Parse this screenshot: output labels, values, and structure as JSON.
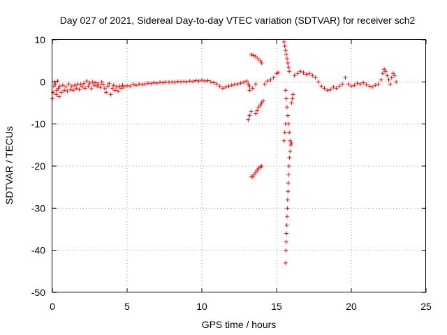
{
  "chart_data": {
    "type": "scatter",
    "title": "Day 027 of 2021, Sidereal Day-to-day VTEC variation (SDTVAR) for receiver sch2",
    "xlabel": "GPS time / hours",
    "ylabel": "SDTVAR / TECUs",
    "xlim": [
      0,
      25
    ],
    "ylim": [
      -50,
      10
    ],
    "xticks": [
      0,
      5,
      10,
      15,
      20,
      25
    ],
    "yticks": [
      -50,
      -40,
      -30,
      -20,
      -10,
      0,
      10
    ],
    "grid": true,
    "marker": "+",
    "series_color": "#ff0000",
    "series": [
      {
        "name": "SDTVAR",
        "points": [
          [
            0.0,
            -4.0
          ],
          [
            0.05,
            -2.5
          ],
          [
            0.1,
            -1.0
          ],
          [
            0.15,
            0.0
          ],
          [
            0.2,
            -0.5
          ],
          [
            0.25,
            -3.0
          ],
          [
            0.3,
            -2.0
          ],
          [
            0.35,
            0.2
          ],
          [
            0.4,
            -1.5
          ],
          [
            0.45,
            -3.5
          ],
          [
            0.5,
            -1.0
          ],
          [
            0.6,
            -2.5
          ],
          [
            0.7,
            -0.8
          ],
          [
            0.8,
            -2.0
          ],
          [
            0.9,
            -1.2
          ],
          [
            1.0,
            -2.2
          ],
          [
            1.1,
            -0.5
          ],
          [
            1.2,
            -1.8
          ],
          [
            1.3,
            -1.0
          ],
          [
            1.4,
            -2.0
          ],
          [
            1.5,
            -0.8
          ],
          [
            1.6,
            -1.5
          ],
          [
            1.7,
            -0.5
          ],
          [
            1.8,
            -1.8
          ],
          [
            1.9,
            -0.6
          ],
          [
            2.0,
            -1.2
          ],
          [
            2.1,
            -0.4
          ],
          [
            2.2,
            -1.5
          ],
          [
            2.3,
            0.2
          ],
          [
            2.4,
            -1.0
          ],
          [
            2.5,
            -0.3
          ],
          [
            2.6,
            -1.6
          ],
          [
            2.7,
            0.0
          ],
          [
            2.8,
            -0.8
          ],
          [
            2.9,
            -0.2
          ],
          [
            3.0,
            -1.0
          ],
          [
            3.1,
            -0.5
          ],
          [
            3.2,
            -1.3
          ],
          [
            3.3,
            0.0
          ],
          [
            3.4,
            -0.7
          ],
          [
            3.5,
            -1.5
          ],
          [
            3.6,
            -2.5
          ],
          [
            3.7,
            -1.0
          ],
          [
            3.8,
            -0.4
          ],
          [
            3.9,
            -3.0
          ],
          [
            4.0,
            -1.5
          ],
          [
            4.1,
            -0.8
          ],
          [
            4.2,
            -2.0
          ],
          [
            4.3,
            -1.2
          ],
          [
            4.4,
            -2.2
          ],
          [
            4.5,
            -1.0
          ],
          [
            4.6,
            -1.5
          ],
          [
            4.7,
            -0.8
          ],
          [
            4.8,
            -1.2
          ],
          [
            5.0,
            -0.9
          ],
          [
            5.2,
            -1.0
          ],
          [
            5.4,
            -0.6
          ],
          [
            5.6,
            -0.8
          ],
          [
            5.8,
            -0.5
          ],
          [
            6.0,
            -0.6
          ],
          [
            6.2,
            -0.5
          ],
          [
            6.4,
            -0.3
          ],
          [
            6.6,
            -0.4
          ],
          [
            6.8,
            -0.2
          ],
          [
            7.0,
            -0.3
          ],
          [
            7.2,
            -0.1
          ],
          [
            7.4,
            -0.2
          ],
          [
            7.6,
            0.0
          ],
          [
            7.8,
            -0.1
          ],
          [
            8.0,
            0.0
          ],
          [
            8.2,
            -0.1
          ],
          [
            8.4,
            0.1
          ],
          [
            8.6,
            0.0
          ],
          [
            8.8,
            0.1
          ],
          [
            9.0,
            0.0
          ],
          [
            9.2,
            0.2
          ],
          [
            9.4,
            0.1
          ],
          [
            9.6,
            0.3
          ],
          [
            9.8,
            0.2
          ],
          [
            10.0,
            0.4
          ],
          [
            10.2,
            0.2
          ],
          [
            10.4,
            0.3
          ],
          [
            10.6,
            0.0
          ],
          [
            10.8,
            -0.2
          ],
          [
            11.0,
            -0.5
          ],
          [
            11.2,
            -1.0
          ],
          [
            11.4,
            -1.5
          ],
          [
            11.6,
            -1.2
          ],
          [
            11.8,
            -1.0
          ],
          [
            12.0,
            -0.8
          ],
          [
            12.2,
            -0.6
          ],
          [
            12.4,
            -0.5
          ],
          [
            12.6,
            -0.3
          ],
          [
            12.8,
            -0.1
          ],
          [
            13.0,
            0.2
          ],
          [
            13.1,
            -0.5
          ],
          [
            13.2,
            -1.0
          ],
          [
            13.1,
            -9.0
          ],
          [
            13.2,
            -8.0
          ],
          [
            13.3,
            -7.0
          ],
          [
            13.3,
            6.5
          ],
          [
            13.45,
            6.3
          ],
          [
            13.6,
            6.0
          ],
          [
            13.75,
            5.5
          ],
          [
            13.9,
            5.0
          ],
          [
            14.0,
            4.5
          ],
          [
            13.3,
            -22.5
          ],
          [
            13.4,
            -22.5
          ],
          [
            13.5,
            -22.0
          ],
          [
            13.6,
            -21.5
          ],
          [
            13.7,
            -21.0
          ],
          [
            13.8,
            -20.5
          ],
          [
            13.9,
            -20.2
          ],
          [
            14.0,
            -20.0
          ],
          [
            13.6,
            -7.5
          ],
          [
            13.7,
            -6.8
          ],
          [
            13.8,
            -6.0
          ],
          [
            13.9,
            -5.5
          ],
          [
            14.0,
            -5.0
          ],
          [
            14.1,
            -4.5
          ],
          [
            13.2,
            -2.0
          ],
          [
            13.4,
            -1.5
          ],
          [
            13.6,
            -0.5
          ],
          [
            14.2,
            -0.5
          ],
          [
            14.4,
            0.2
          ],
          [
            14.6,
            0.5
          ],
          [
            14.8,
            1.0
          ],
          [
            15.0,
            2.0
          ],
          [
            15.1,
            2.2
          ],
          [
            15.5,
            9.5
          ],
          [
            15.55,
            8.5
          ],
          [
            15.6,
            7.5
          ],
          [
            15.65,
            6.5
          ],
          [
            15.7,
            5.5
          ],
          [
            15.75,
            4.5
          ],
          [
            15.8,
            3.5
          ],
          [
            15.85,
            2.5
          ],
          [
            15.6,
            -2.0
          ],
          [
            15.65,
            -4.0
          ],
          [
            15.7,
            -6.0
          ],
          [
            15.75,
            -8.0
          ],
          [
            15.8,
            -10.0
          ],
          [
            15.85,
            -12.0
          ],
          [
            15.9,
            -14.0
          ],
          [
            15.5,
            -14.0
          ],
          [
            15.55,
            -12.0
          ],
          [
            15.6,
            -10.0
          ],
          [
            15.6,
            -43.0
          ],
          [
            15.62,
            -40.0
          ],
          [
            15.64,
            -38.0
          ],
          [
            15.66,
            -36.0
          ],
          [
            15.68,
            -34.0
          ],
          [
            15.7,
            -32.0
          ],
          [
            15.72,
            -30.0
          ],
          [
            15.74,
            -28.0
          ],
          [
            15.76,
            -26.0
          ],
          [
            15.78,
            -24.0
          ],
          [
            15.8,
            -22.0
          ],
          [
            15.83,
            -20.0
          ],
          [
            15.86,
            -18.0
          ],
          [
            15.9,
            -16.5
          ],
          [
            15.95,
            -15.0
          ],
          [
            16.0,
            -14.5
          ],
          [
            16.0,
            -5.0
          ],
          [
            16.05,
            -4.0
          ],
          [
            16.1,
            -3.0
          ],
          [
            16.2,
            1.5
          ],
          [
            16.4,
            2.0
          ],
          [
            16.6,
            2.5
          ],
          [
            16.8,
            2.2
          ],
          [
            17.0,
            1.8
          ],
          [
            17.2,
            2.0
          ],
          [
            17.4,
            1.5
          ],
          [
            17.6,
            1.0
          ],
          [
            17.8,
            0.0
          ],
          [
            18.0,
            -1.0
          ],
          [
            18.2,
            -1.5
          ],
          [
            18.4,
            -2.0
          ],
          [
            18.6,
            -1.8
          ],
          [
            18.8,
            -1.2
          ],
          [
            19.0,
            -1.5
          ],
          [
            19.2,
            -1.0
          ],
          [
            19.4,
            -0.5
          ],
          [
            19.6,
            1.0
          ],
          [
            19.8,
            -0.5
          ],
          [
            20.0,
            -1.0
          ],
          [
            20.2,
            -0.8
          ],
          [
            20.4,
            -0.3
          ],
          [
            20.6,
            -0.5
          ],
          [
            20.8,
            -0.2
          ],
          [
            21.0,
            -0.6
          ],
          [
            21.2,
            -1.0
          ],
          [
            21.4,
            -1.2
          ],
          [
            21.6,
            -0.8
          ],
          [
            21.8,
            -0.5
          ],
          [
            22.0,
            0.5
          ],
          [
            22.1,
            2.0
          ],
          [
            22.2,
            3.0
          ],
          [
            22.3,
            2.5
          ],
          [
            22.4,
            1.5
          ],
          [
            22.5,
            0.5
          ],
          [
            22.6,
            -0.5
          ],
          [
            22.7,
            1.0
          ],
          [
            22.8,
            2.0
          ],
          [
            22.9,
            1.5
          ],
          [
            23.0,
            0.0
          ]
        ]
      }
    ]
  }
}
